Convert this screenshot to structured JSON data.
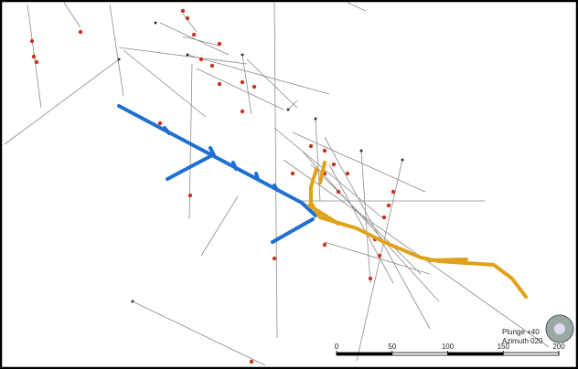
{
  "view": {
    "plunge": "Plunge +40",
    "azimuth": "Azimuth 020"
  },
  "scale_bar": {
    "ticks": [
      0,
      50,
      100,
      150,
      200
    ]
  }
}
